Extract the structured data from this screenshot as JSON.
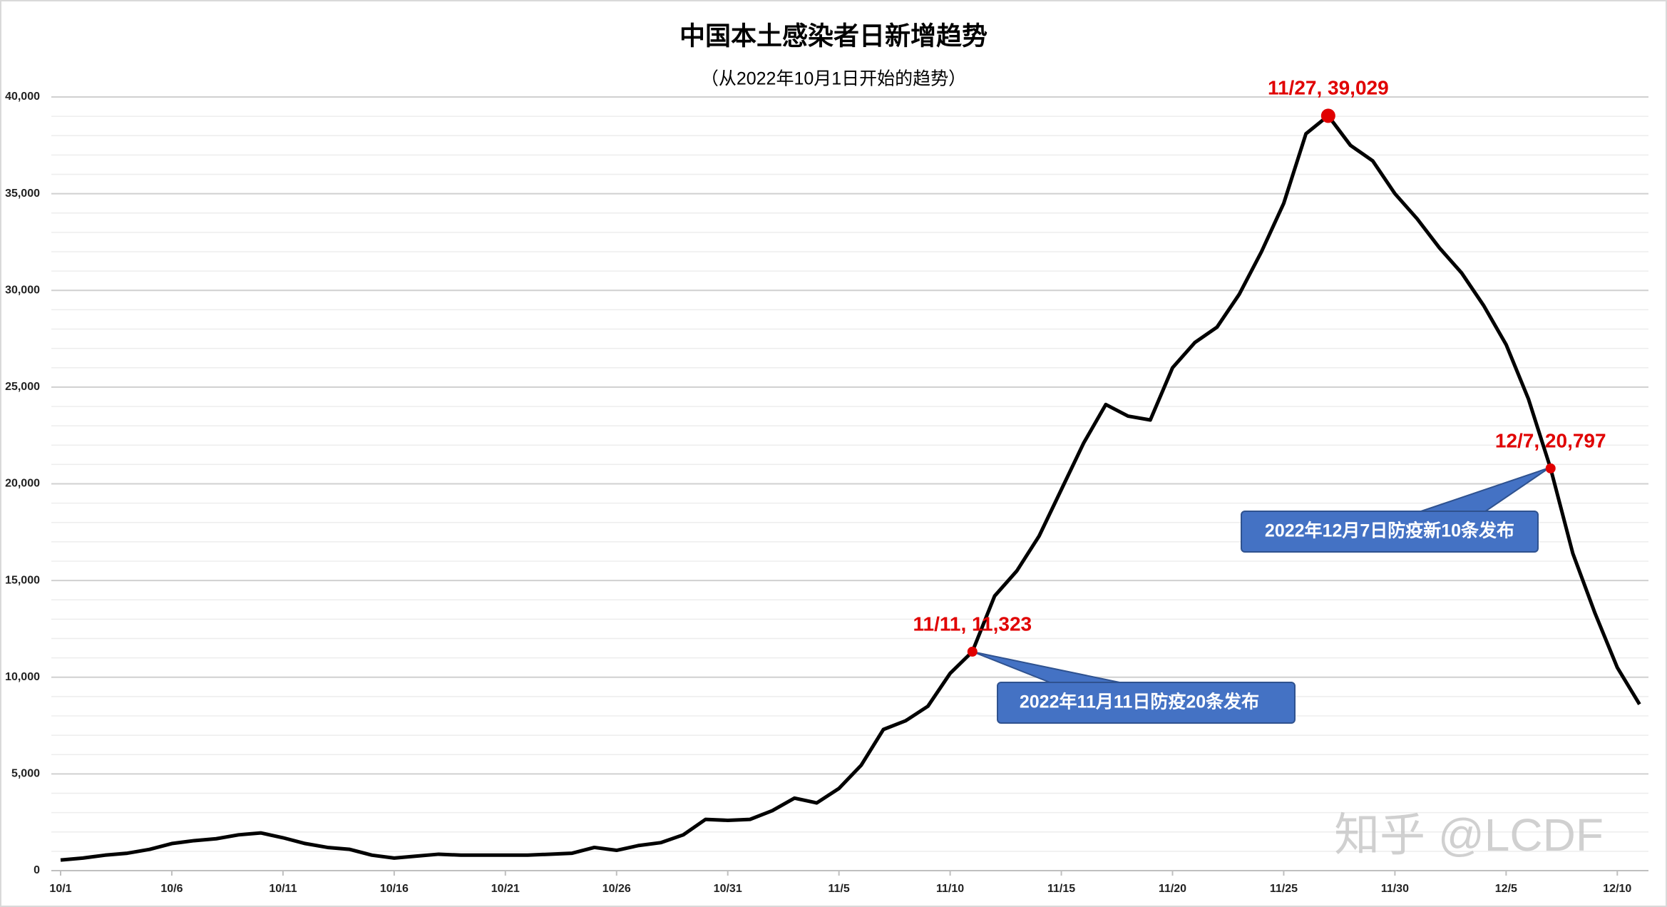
{
  "chart_data": {
    "type": "line",
    "title": "中国本土感染者日新增趋势",
    "subtitle": "（从2022年10月1日开始的趋势）",
    "categories": [
      "10/1",
      null,
      null,
      null,
      null,
      "10/6",
      null,
      null,
      null,
      null,
      "10/11",
      null,
      null,
      null,
      null,
      "10/16",
      null,
      null,
      null,
      null,
      "10/21",
      null,
      null,
      null,
      null,
      "10/26",
      null,
      null,
      null,
      null,
      "10/31",
      null,
      null,
      null,
      null,
      "11/5",
      null,
      null,
      null,
      null,
      "11/10",
      null,
      null,
      null,
      null,
      "11/15",
      null,
      null,
      null,
      null,
      "11/20",
      null,
      null,
      null,
      null,
      "11/25",
      null,
      null,
      null,
      null,
      "11/30",
      null,
      null,
      null,
      null,
      "12/5",
      null,
      null,
      null,
      null,
      "12/10",
      null
    ],
    "values": [
      550,
      650,
      800,
      900,
      1100,
      1400,
      1550,
      1650,
      1850,
      1950,
      1700,
      1400,
      1200,
      1100,
      800,
      650,
      750,
      850,
      800,
      800,
      800,
      800,
      850,
      900,
      1200,
      1050,
      1300,
      1450,
      1850,
      2650,
      2600,
      2650,
      3100,
      3750,
      3500,
      4250,
      5450,
      7300,
      7750,
      8500,
      10200,
      11323,
      14200,
      15500,
      17300,
      19700,
      22100,
      24100,
      23500,
      23300,
      26000,
      27300,
      28100,
      29800,
      32000,
      34500,
      38100,
      39029,
      37500,
      36700,
      35000,
      33700,
      32200,
      30900,
      29200,
      27200,
      24400,
      20797,
      16400,
      13300,
      10500,
      8600
    ],
    "value_labels": [
      null,
      null,
      null,
      null,
      null,
      null,
      null,
      null,
      null,
      null,
      null,
      null,
      null,
      null,
      null,
      null,
      null,
      null,
      null,
      null,
      null,
      null,
      null,
      null,
      null,
      null,
      null,
      null,
      null,
      null,
      null,
      null,
      null,
      null,
      null,
      null,
      null,
      null,
      null,
      null,
      null,
      "11/11, 11,323",
      null,
      null,
      null,
      null,
      null,
      null,
      null,
      null,
      null,
      null,
      null,
      null,
      null,
      null,
      null,
      "11/27, 39,029",
      null,
      null,
      null,
      null,
      null,
      null,
      null,
      null,
      null,
      "12/7, 20,797",
      null,
      null,
      null,
      null
    ],
    "color": "#000000",
    "highlight_color": "#e00000",
    "ylim": [
      0,
      40000
    ],
    "yticks": [
      0,
      {
        "value": 5000,
        "label": "5,000"
      },
      {
        "value": 10000,
        "label": "10,000"
      },
      {
        "value": 15000,
        "label": "15,000"
      },
      {
        "value": 20000,
        "label": "20,000"
      },
      {
        "value": 25000,
        "label": "25,000"
      },
      {
        "value": 30000,
        "label": "30,000"
      },
      {
        "value": 35000,
        "label": "35,000"
      },
      {
        "value": 40000,
        "label": "40,000"
      }
    ],
    "grid": true,
    "minor_grid": true,
    "annotations": [
      "2022年11月11日防疫20条发布",
      "2022年12月7日防疫新10条发布"
    ],
    "watermark": "知乎 @LCDF"
  }
}
